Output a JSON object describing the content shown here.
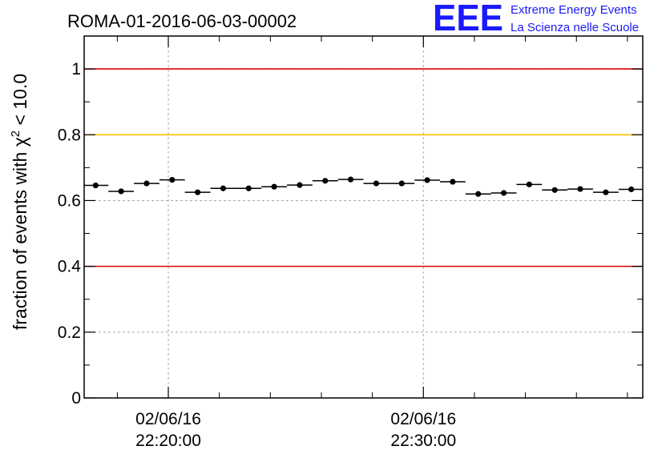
{
  "chart_data": {
    "type": "scatter",
    "title": "ROMA-01-2016-06-03-00002",
    "ylabel": {
      "prefix": "fraction of events with ",
      "symbol": "χ",
      "sup": "2",
      "suffix": " < 10.0"
    },
    "xlabel": "",
    "ylim": [
      0,
      1.1
    ],
    "yticks": [
      "0",
      "0.2",
      "0.4",
      "0.6",
      "0.8",
      "1"
    ],
    "x_unit": "minutes",
    "xlim": [
      16.7,
      38.6
    ],
    "xticks": [
      {
        "x": 20,
        "date": "02/06/16",
        "time": "22:20:00"
      },
      {
        "x": 30,
        "date": "02/06/16",
        "time": "22:30:00"
      }
    ],
    "grid": true,
    "reference_lines": [
      {
        "y": 1.0,
        "color": "#e00000"
      },
      {
        "y": 0.8,
        "color": "#ffc000"
      },
      {
        "y": 0.4,
        "color": "#e00000"
      }
    ],
    "bin_width": 1.0,
    "series": [
      {
        "x": [
          17.15,
          18.15,
          19.15,
          20.15,
          21.15,
          22.15,
          23.15,
          24.15,
          25.15,
          26.15,
          27.15,
          28.15,
          29.15,
          30.15,
          31.15,
          32.15,
          33.15,
          34.15,
          35.15,
          36.15,
          37.15,
          38.15
        ],
        "values": [
          0.646,
          0.628,
          0.652,
          0.663,
          0.625,
          0.637,
          0.637,
          0.642,
          0.647,
          0.66,
          0.664,
          0.652,
          0.652,
          0.662,
          0.657,
          0.62,
          0.623,
          0.649,
          0.632,
          0.635,
          0.625,
          0.634
        ],
        "error": 0.008
      }
    ]
  },
  "logo": {
    "mark": "EEE",
    "line1": "Extreme Energy Events",
    "line2": "La Scienza nelle Scuole"
  }
}
